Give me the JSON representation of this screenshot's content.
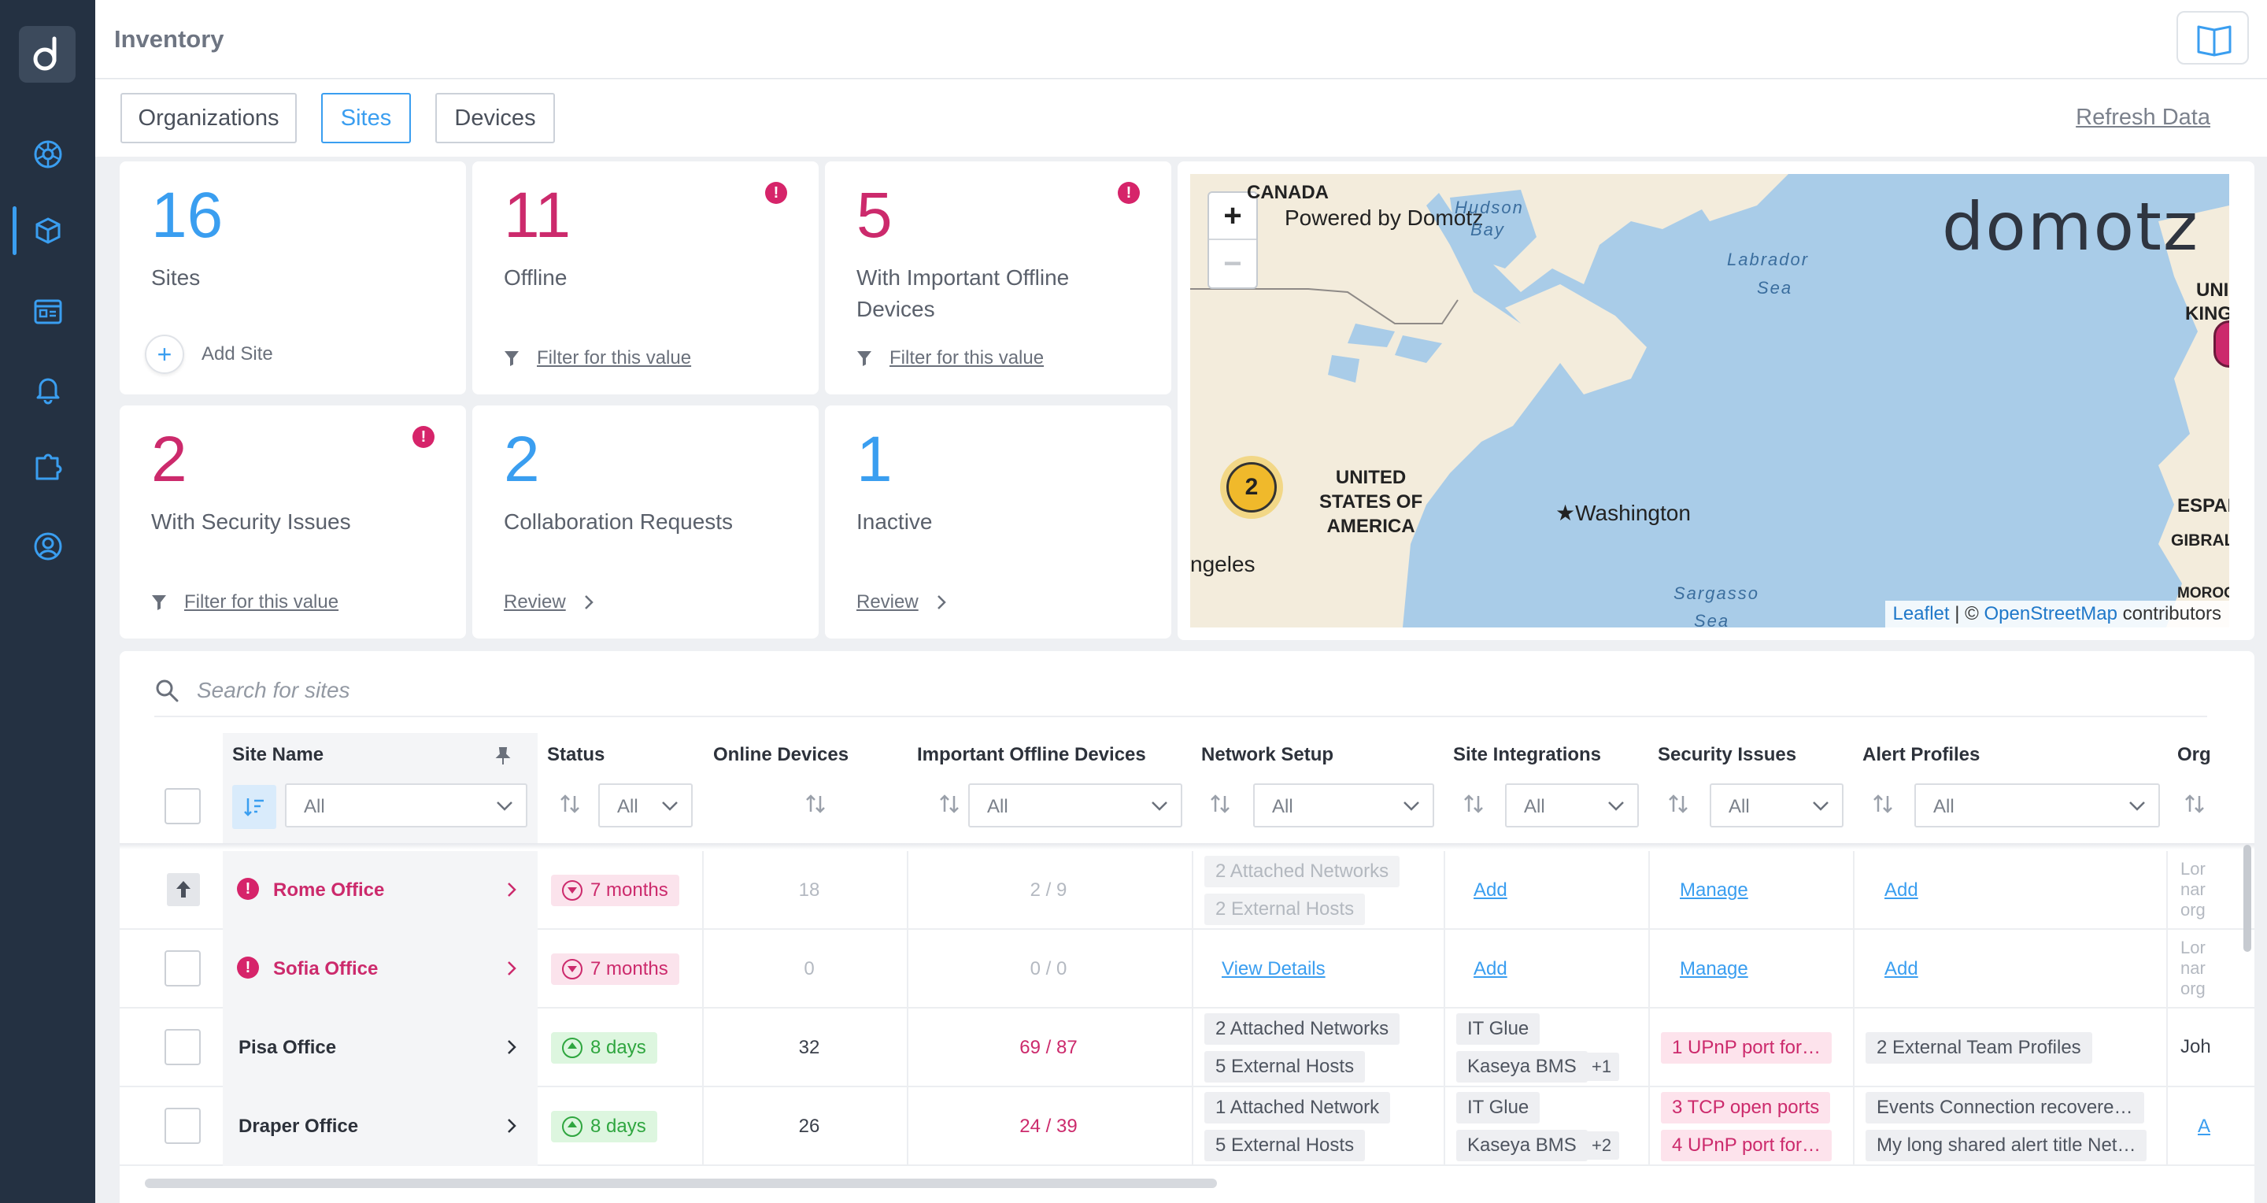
{
  "header": {
    "title": "Inventory"
  },
  "tabs": [
    {
      "label": "Organizations"
    },
    {
      "label": "Sites"
    },
    {
      "label": "Devices"
    }
  ],
  "active_tab": "Sites",
  "refresh_label": "Refresh Data",
  "cards": {
    "sites": {
      "value": "16",
      "label": "Sites",
      "action": "Add Site"
    },
    "offline": {
      "value": "11",
      "label": "Offline",
      "action": "Filter for this value"
    },
    "important_offline": {
      "value": "5",
      "label": "With Important Offline Devices",
      "action": "Filter for this value"
    },
    "security": {
      "value": "2",
      "label": "With Security Issues",
      "action": "Filter for this value"
    },
    "collab": {
      "value": "2",
      "label": "Collaboration Requests",
      "action": "Review"
    },
    "inactive": {
      "value": "1",
      "label": "Inactive",
      "action": "Review"
    }
  },
  "map": {
    "powered": "Powered by Domotz",
    "brand": "domotz",
    "cluster": "2",
    "labels": {
      "canada": "CANADA",
      "hudson": "Hudson",
      "bay": "Bay",
      "labrador": "Labrador",
      "sea": "Sea",
      "usa1": "UNITED",
      "usa2": "STATES OF",
      "usa3": "AMERICA",
      "washington": "Washington",
      "angeles": "ngeles",
      "sargasso": "Sargasso",
      "sea2": "Sea",
      "uk1": "UNI",
      "uk2": "KING",
      "espana": "ESPAÑ",
      "gibraltar": "GIBRALT",
      "morocco": "MOROCCO"
    },
    "attribution_leaflet": "Leaflet",
    "attribution_sep": " | © ",
    "attribution_osm": "OpenStreetMap",
    "attribution_tail": " contributors"
  },
  "search": {
    "placeholder": "Search for sites"
  },
  "columns": {
    "site_name": "Site Name",
    "status": "Status",
    "online": "Online Devices",
    "important": "Important Offline Devices",
    "network": "Network Setup",
    "integrations": "Site Integrations",
    "security": "Security Issues",
    "alerts": "Alert Profiles",
    "org": "Org"
  },
  "filters": {
    "site_name": "All",
    "status": "All",
    "important": "All",
    "network": "All",
    "integrations": "All",
    "security": "All",
    "alerts": "All"
  },
  "rows": [
    {
      "name": "Rome Office",
      "status": "7 months",
      "online": "18",
      "important": "2 / 9",
      "network": [
        "2 Attached Networks",
        "2 External Hosts"
      ],
      "integrations": "Add",
      "security": "Manage",
      "alerts": "Add",
      "org": [
        "Lor",
        "nar",
        "org"
      ]
    },
    {
      "name": "Sofia Office",
      "status": "7 months",
      "online": "0",
      "important": "0 / 0",
      "network": "View Details",
      "integrations": "Add",
      "security": "Manage",
      "alerts": "Add",
      "org": [
        "Lor",
        "nar",
        "org"
      ]
    },
    {
      "name": "Pisa Office",
      "status": "8 days",
      "online": "32",
      "important": "69 / 87",
      "network": [
        "2 Attached Networks",
        "5 External Hosts"
      ],
      "integrations": [
        "IT Glue",
        "Kaseya BMS"
      ],
      "integrations_more": "+1",
      "security": [
        "1 UPnP port for…"
      ],
      "alerts": [
        "2 External Team Profiles"
      ],
      "org": "Joh"
    },
    {
      "name": "Draper Office",
      "status": "8 days",
      "online": "26",
      "important": "24 / 39",
      "network": [
        "1 Attached Network",
        "5 External Hosts"
      ],
      "integrations": [
        "IT Glue",
        "Kaseya BMS"
      ],
      "integrations_more": "+2",
      "security": [
        "3 TCP open ports",
        "4 UPnP port for…"
      ],
      "alerts": [
        "Events Connection recovere…",
        "My long shared alert title Net…"
      ],
      "org": "A"
    }
  ],
  "colors": {
    "accent": "#3a9ef0",
    "alert": "#cc2a6c",
    "success": "#2fa63f",
    "sidebar": "#243142"
  }
}
